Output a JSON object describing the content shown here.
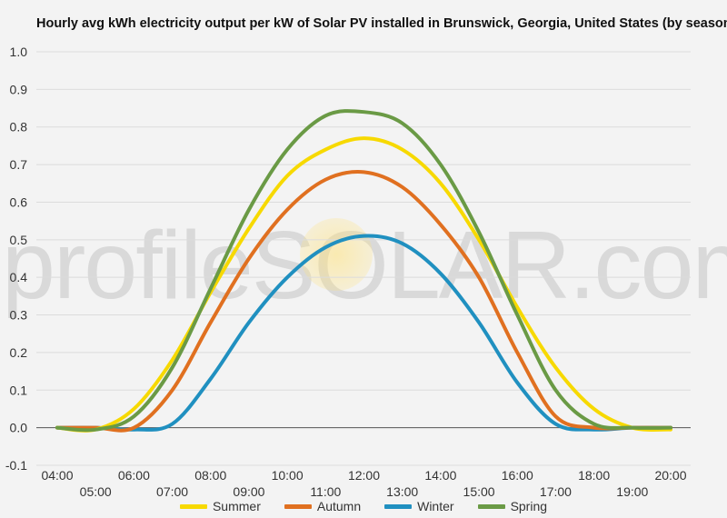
{
  "chart_data": {
    "type": "line",
    "title": "Hourly avg kWh electricity output per kW of Solar PV installed in Brunswick, Georgia, United States (by season)",
    "xlabel": "",
    "ylabel": "",
    "x": [
      "04:00",
      "05:00",
      "06:00",
      "07:00",
      "08:00",
      "09:00",
      "10:00",
      "11:00",
      "12:00",
      "13:00",
      "14:00",
      "15:00",
      "16:00",
      "17:00",
      "18:00",
      "19:00",
      "20:00"
    ],
    "ylim": [
      -0.1,
      1.0
    ],
    "yticks": [
      "-0.1",
      "0.0",
      "0.1",
      "0.2",
      "0.3",
      "0.4",
      "0.5",
      "0.6",
      "0.7",
      "0.8",
      "0.9",
      "1.0"
    ],
    "grid": true,
    "legend_position": "bottom",
    "series": [
      {
        "name": "Summer",
        "color": "#f7d900",
        "values": [
          0.0,
          -0.005,
          0.05,
          0.18,
          0.36,
          0.53,
          0.67,
          0.74,
          0.77,
          0.74,
          0.65,
          0.5,
          0.32,
          0.16,
          0.05,
          0.0,
          -0.005
        ]
      },
      {
        "name": "Autumn",
        "color": "#e07020",
        "values": [
          0.0,
          0.0,
          0.0,
          0.1,
          0.28,
          0.45,
          0.58,
          0.66,
          0.68,
          0.64,
          0.54,
          0.4,
          0.2,
          0.03,
          0.0,
          0.0,
          0.0
        ]
      },
      {
        "name": "Winter",
        "color": "#2090c0",
        "values": [
          0.0,
          0.0,
          -0.005,
          0.01,
          0.13,
          0.28,
          0.4,
          0.48,
          0.51,
          0.49,
          0.41,
          0.28,
          0.12,
          0.01,
          -0.005,
          0.0,
          0.0
        ]
      },
      {
        "name": "Spring",
        "color": "#6a9a45",
        "values": [
          0.0,
          -0.005,
          0.03,
          0.16,
          0.37,
          0.58,
          0.74,
          0.83,
          0.84,
          0.81,
          0.7,
          0.52,
          0.3,
          0.1,
          0.01,
          0.0,
          0.0
        ]
      }
    ]
  },
  "watermark": "profileSOLAR.com"
}
